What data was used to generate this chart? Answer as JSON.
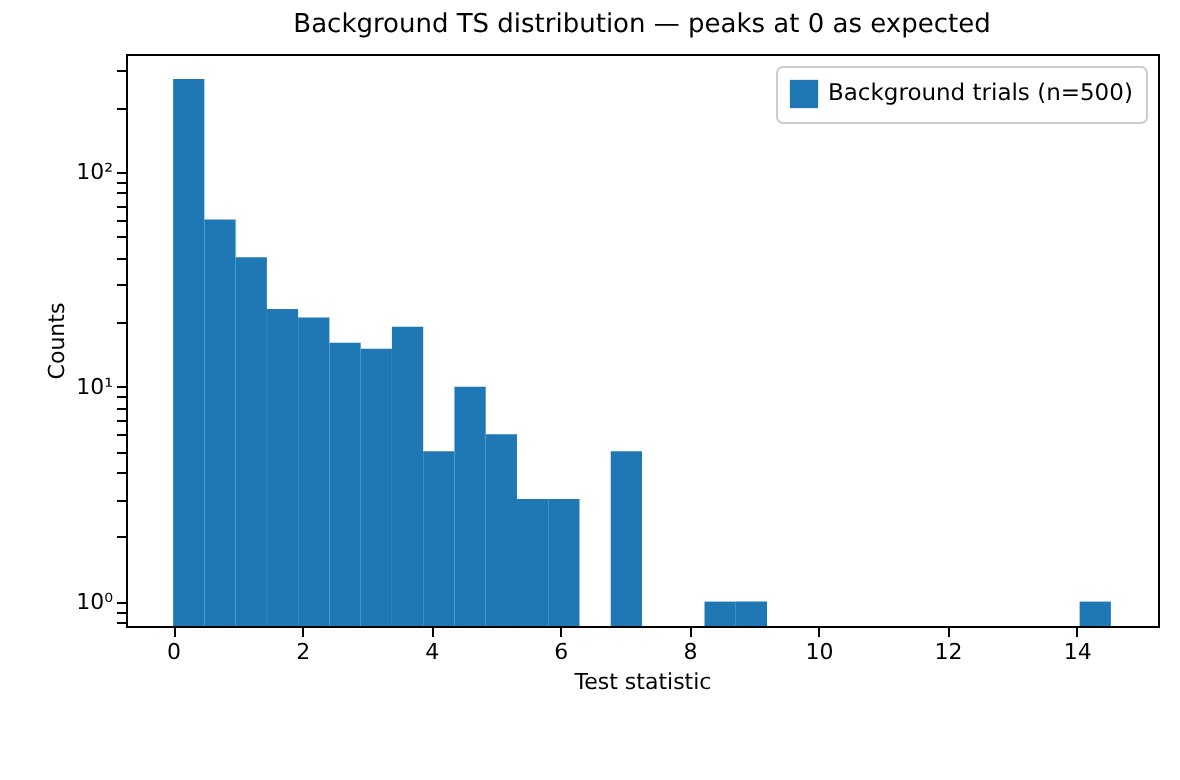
{
  "chart_data": {
    "type": "histogram",
    "title": "Background TS distribution — peaks at 0 as expected",
    "xlabel": "Test statistic",
    "ylabel": "Counts",
    "bins": [
      0,
      0.4843,
      0.9687,
      1.453,
      1.9373,
      2.4217,
      2.906,
      3.3903,
      3.8747,
      4.359,
      4.8433,
      5.3277,
      5.812,
      6.2963,
      6.7807,
      7.265,
      7.7493,
      8.2337,
      8.718,
      9.2023,
      9.6867,
      10.171,
      10.6553,
      11.1397,
      11.624,
      12.1083,
      12.5927,
      13.077,
      13.5613,
      14.0457,
      14.53
    ],
    "series": [
      {
        "name": "Background trials (n=500)",
        "color": "#1f77b4",
        "values": [
          270,
          60,
          40,
          23,
          21,
          16,
          15,
          19,
          5,
          10,
          6,
          3,
          3,
          null,
          5,
          null,
          null,
          1,
          1,
          null,
          null,
          null,
          null,
          null,
          null,
          null,
          null,
          null,
          null,
          1
        ]
      }
    ],
    "log": "y",
    "xlim": [
      -0.73,
      15.26
    ],
    "ylim": [
      0.77,
      353
    ],
    "xticks": [
      0,
      2,
      4,
      6,
      8,
      10,
      12,
      14
    ],
    "yticks": [
      {
        "value": 0.8,
        "label": null
      },
      {
        "value": 0.9,
        "label": null
      },
      {
        "value": 1,
        "label": "10⁰"
      },
      {
        "value": 2,
        "label": null
      },
      {
        "value": 3,
        "label": null
      },
      {
        "value": 4,
        "label": null
      },
      {
        "value": 5,
        "label": null
      },
      {
        "value": 6,
        "label": null
      },
      {
        "value": 7,
        "label": null
      },
      {
        "value": 8,
        "label": null
      },
      {
        "value": 9,
        "label": null
      },
      {
        "value": 10,
        "label": "10¹"
      },
      {
        "value": 20,
        "label": null
      },
      {
        "value": 30,
        "label": null
      },
      {
        "value": 40,
        "label": null
      },
      {
        "value": 50,
        "label": null
      },
      {
        "value": 60,
        "label": null
      },
      {
        "value": 70,
        "label": null
      },
      {
        "value": 80,
        "label": null
      },
      {
        "value": 90,
        "label": null
      },
      {
        "value": 100,
        "label": "10²"
      },
      {
        "value": 200,
        "label": null
      },
      {
        "value": 300,
        "label": null
      }
    ],
    "grid": false,
    "legend": "top right"
  }
}
